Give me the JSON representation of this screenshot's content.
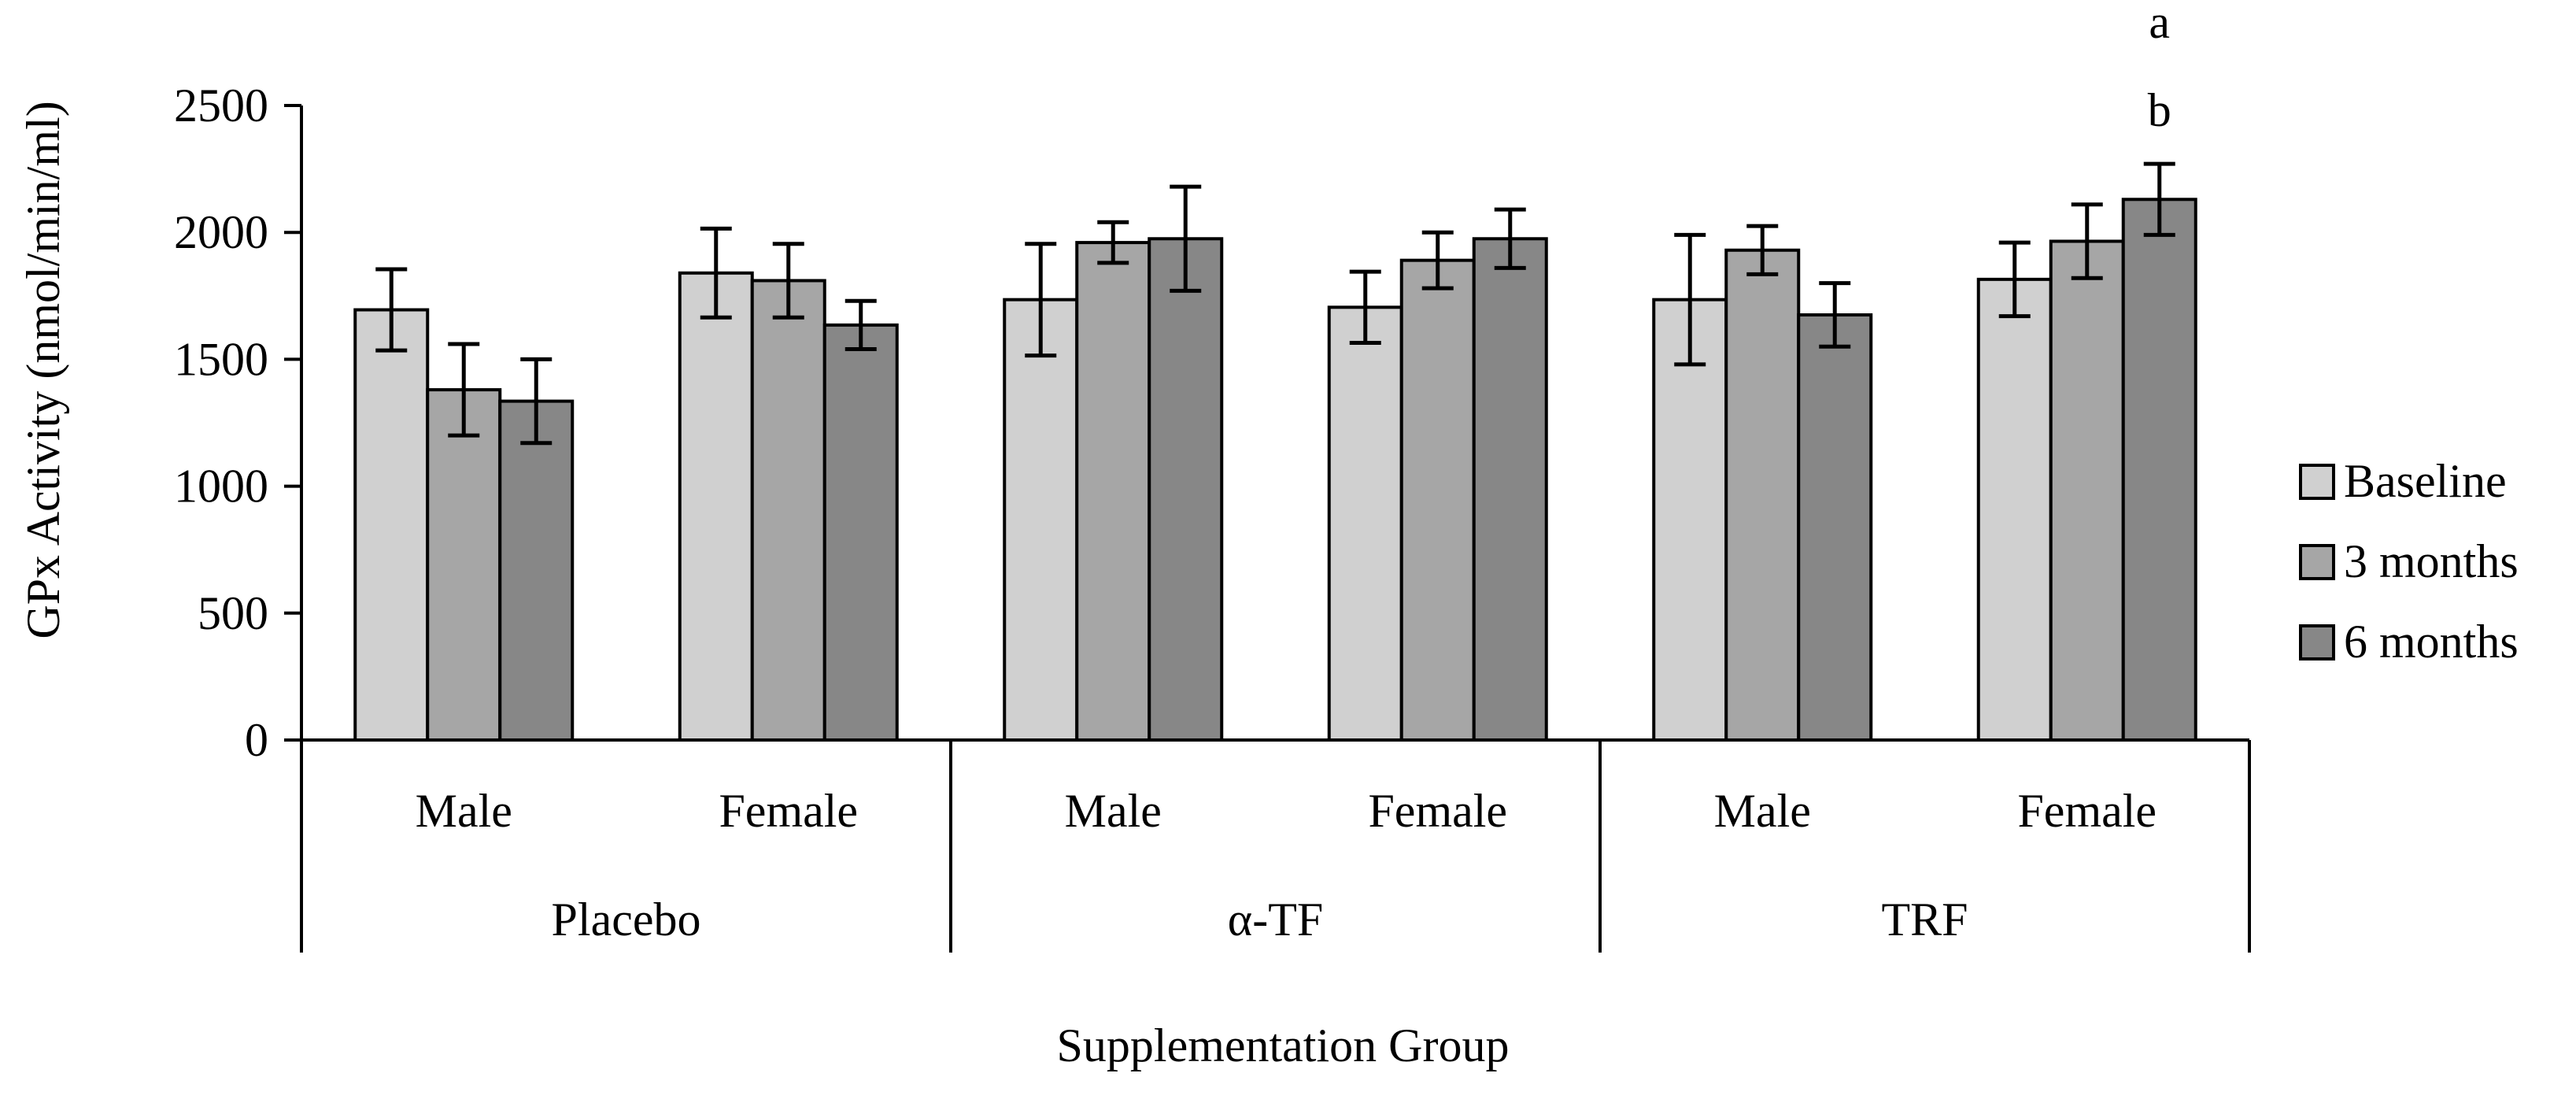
{
  "chart_data": {
    "type": "bar",
    "title": "",
    "xlabel": "Supplementation Group",
    "ylabel": "GPx Activity (nmol/min/ml)",
    "ylim": [
      0,
      2500
    ],
    "yticks": [
      0,
      500,
      1000,
      1500,
      2000,
      2500
    ],
    "grid": false,
    "legend_position": "right",
    "groups": [
      {
        "label": "Placebo",
        "subcategories": [
          "Male",
          "Female"
        ]
      },
      {
        "label": "α-TF",
        "subcategories": [
          "Male",
          "Female"
        ]
      },
      {
        "label": "TRF",
        "subcategories": [
          "Male",
          "Female"
        ]
      }
    ],
    "categories": [
      "Placebo Male",
      "Placebo Female",
      "α-TF Male",
      "α-TF Female",
      "TRF Male",
      "TRF Female"
    ],
    "series": [
      {
        "name": "Baseline",
        "color": "#d0d0d0",
        "values": [
          1695,
          1840,
          1735,
          1705,
          1735,
          1815
        ],
        "errors": [
          160,
          175,
          220,
          140,
          255,
          145
        ]
      },
      {
        "name": "3 months",
        "color": "#a6a6a6",
        "values": [
          1380,
          1810,
          1960,
          1890,
          1930,
          1965
        ],
        "errors": [
          180,
          145,
          80,
          110,
          95,
          145
        ]
      },
      {
        "name": "6 months",
        "color": "#878787",
        "values": [
          1335,
          1635,
          1975,
          1975,
          1675,
          2130
        ],
        "errors": [
          165,
          95,
          205,
          115,
          125,
          140
        ]
      }
    ],
    "annotations": [
      {
        "text": "a",
        "category": "TRF Female",
        "series": "6 months"
      },
      {
        "text": "b",
        "category": "TRF Female",
        "series": "6 months"
      }
    ]
  }
}
